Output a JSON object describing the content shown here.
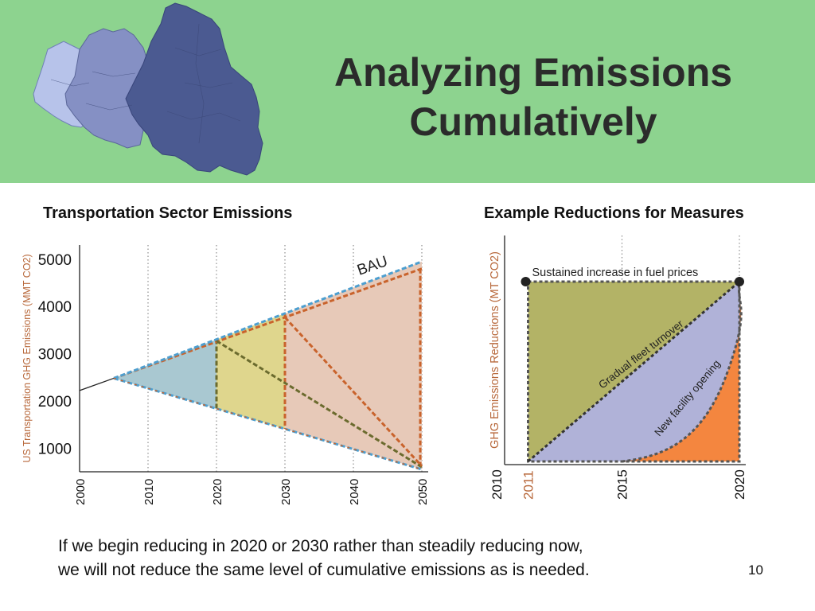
{
  "slide": {
    "title_line1": "Analyzing Emissions",
    "title_line2": "Cumulatively",
    "note_line1": "If we begin reducing in 2020 or 2030 rather than steadily reducing now,",
    "note_line2": "we will not reduce the same level of cumulative emissions as is needed.",
    "page_number": "10"
  },
  "colors": {
    "header_bg": "#8dd38f",
    "map_light": "#b7c3ea",
    "map_mid": "#8590c4",
    "map_dark": "#4b5a91",
    "bau_line": "#4d9fd0",
    "cut_line": "#c9632c",
    "fill_blue": "#a9c8d1",
    "fill_yellow": "#dfd68d",
    "fill_peach": "#e7c9b8",
    "fill_olive": "#b3b366",
    "fill_lavender": "#b0b2d8",
    "fill_orange": "#f4863f",
    "axis_label": "#b8693c"
  },
  "chart_data": [
    {
      "type": "area",
      "title": "Transportation Sector Emissions",
      "ylabel": "US Transportation GHG Emissions (MMT CO2)",
      "xlabel": "",
      "x_ticks": [
        2000,
        2010,
        2020,
        2030,
        2040,
        2050
      ],
      "y_ticks": [
        1000,
        2000,
        3000,
        4000,
        5000
      ],
      "xlim": [
        2000,
        2050
      ],
      "ylim": [
        500,
        5300
      ],
      "grid": "vertical dotted",
      "annotations": [
        "BAU"
      ],
      "series": [
        {
          "name": "BAU",
          "x": [
            2005,
            2050
          ],
          "y": [
            2480,
            4950
          ]
        },
        {
          "x": [
            2000,
            2005
          ],
          "y": [
            2220,
            2480
          ]
        },
        {
          "x": [
            2005,
            2050
          ],
          "y": [
            2480,
            550
          ]
        },
        {
          "x": [
            2020,
            2050
          ],
          "y": [
            3270,
            600
          ]
        },
        {
          "x": [
            2030,
            2050
          ],
          "y": [
            3770,
            620
          ]
        }
      ]
    },
    {
      "type": "area",
      "title": "Example Reductions for Measures",
      "ylabel": "GHG Emissions Reductions (MT CO2)",
      "xlabel": "",
      "x_ticks": [
        "2010",
        "2011",
        "2015",
        "2020"
      ],
      "xlim": [
        2010,
        2020
      ],
      "ylim": [
        0,
        1
      ],
      "grid": "vertical dotted",
      "series": [
        {
          "name": "Sustained increase in fuel prices",
          "x": [
            2011,
            2020
          ],
          "y": [
            1,
            1
          ]
        },
        {
          "name": "Gradual fleet turnover",
          "x": [
            2011,
            2020
          ],
          "y": [
            0,
            1
          ]
        },
        {
          "name": "New facility opening",
          "x": [
            2015,
            2017,
            2018.5,
            2019.5,
            2020
          ],
          "y": [
            0,
            0.03,
            0.18,
            0.5,
            1
          ]
        }
      ]
    }
  ]
}
